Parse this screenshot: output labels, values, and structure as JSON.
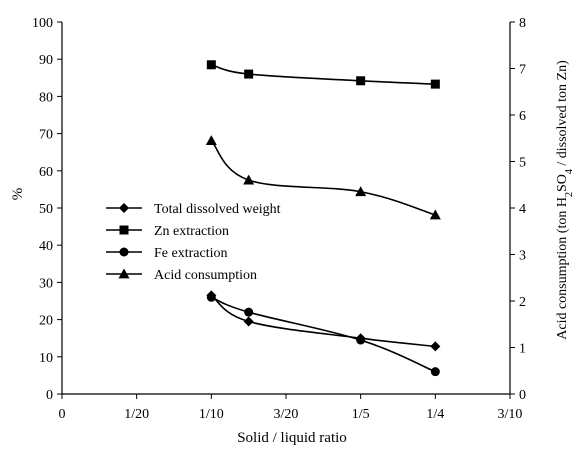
{
  "chart_data": {
    "type": "line",
    "xlabel": "Solid / liquid ratio",
    "ylabel": "%",
    "y2label_parts": [
      "Acid consumption (ton H",
      "2",
      "SO",
      "4",
      " / dissolved ton Zn)"
    ],
    "xlim": [
      0,
      0.3
    ],
    "ylim": [
      0,
      100
    ],
    "y2lim": [
      0,
      8
    ],
    "x_ticks": [
      {
        "value": 0,
        "label": "0"
      },
      {
        "value": 0.05,
        "label": "1/20"
      },
      {
        "value": 0.1,
        "label": "1/10"
      },
      {
        "value": 0.15,
        "label": "3/20"
      },
      {
        "value": 0.2,
        "label": "1/5"
      },
      {
        "value": 0.25,
        "label": "1/4"
      },
      {
        "value": 0.3,
        "label": "3/10"
      }
    ],
    "y_ticks": [
      "0",
      "10",
      "20",
      "30",
      "40",
      "50",
      "60",
      "70",
      "80",
      "90",
      "100"
    ],
    "y2_ticks": [
      "0",
      "1",
      "2",
      "3",
      "4",
      "5",
      "6",
      "7",
      "8"
    ],
    "grid": false,
    "legend_position": "middle-left",
    "series": [
      {
        "name": "Total dissolved weight",
        "marker": "diamond",
        "axis": "left",
        "x": [
          0.1,
          0.125,
          0.2,
          0.25
        ],
        "y": [
          26.5,
          19.5,
          15.0,
          12.8
        ]
      },
      {
        "name": "Zn extraction",
        "marker": "square",
        "axis": "left",
        "x": [
          0.1,
          0.125,
          0.2,
          0.25
        ],
        "y": [
          88.5,
          86.0,
          84.2,
          83.3
        ]
      },
      {
        "name": "Fe extraction",
        "marker": "circle",
        "axis": "left",
        "x": [
          0.1,
          0.125,
          0.2,
          0.25
        ],
        "y": [
          26.0,
          22.0,
          14.5,
          6.0
        ]
      },
      {
        "name": "Acid consumption",
        "marker": "triangle",
        "axis": "right",
        "x": [
          0.1,
          0.125,
          0.2,
          0.25
        ],
        "y": [
          5.45,
          4.6,
          4.35,
          3.85
        ]
      }
    ]
  }
}
